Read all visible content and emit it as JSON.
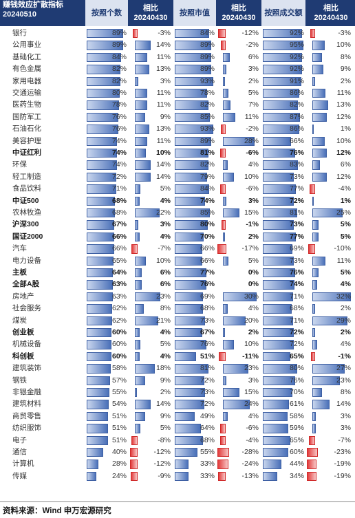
{
  "header": {
    "name_title": "赚钱效应扩散指标",
    "name_date": "20240510",
    "c1": "按照个数",
    "c2_title": "相比",
    "c2_date": "20240430",
    "c3": "按照市值",
    "c4_title": "相比",
    "c4_date": "20240430",
    "c5": "按照成交额",
    "c6_title": "相比",
    "c6_date": "20240430"
  },
  "chart_data": {
    "type": "table",
    "columns": [
      "按照个数",
      "相比20240430",
      "按照市值",
      "相比20240430",
      "按照成交额",
      "相比20240430"
    ],
    "rows": [
      {
        "name": "银行",
        "bold": false,
        "v": [
          89,
          -3,
          84,
          -12,
          92,
          -3
        ]
      },
      {
        "name": "公用事业",
        "bold": false,
        "v": [
          89,
          14,
          89,
          -2,
          95,
          10
        ]
      },
      {
        "name": "基础化工",
        "bold": false,
        "v": [
          84,
          11,
          89,
          6,
          92,
          8
        ]
      },
      {
        "name": "有色金属",
        "bold": false,
        "v": [
          82,
          13,
          89,
          3,
          92,
          9
        ]
      },
      {
        "name": "家用电器",
        "bold": false,
        "v": [
          82,
          3,
          93,
          2,
          91,
          2
        ]
      },
      {
        "name": "交通运输",
        "bold": false,
        "v": [
          80,
          11,
          78,
          5,
          86,
          11
        ]
      },
      {
        "name": "医药生物",
        "bold": false,
        "v": [
          78,
          11,
          82,
          7,
          82,
          13
        ]
      },
      {
        "name": "国防军工",
        "bold": false,
        "v": [
          76,
          9,
          85,
          11,
          87,
          12
        ]
      },
      {
        "name": "石油石化",
        "bold": false,
        "v": [
          76,
          13,
          93,
          -2,
          86,
          1
        ]
      },
      {
        "name": "美容护理",
        "bold": false,
        "v": [
          74,
          11,
          89,
          28,
          66,
          10
        ]
      },
      {
        "name": "中证红利",
        "bold": true,
        "v": [
          74,
          10,
          81,
          -6,
          76,
          12
        ]
      },
      {
        "name": "环保",
        "bold": false,
        "v": [
          74,
          14,
          82,
          4,
          83,
          6
        ]
      },
      {
        "name": "轻工制造",
        "bold": false,
        "v": [
          72,
          14,
          79,
          10,
          73,
          12
        ]
      },
      {
        "name": "食品饮料",
        "bold": false,
        "v": [
          71,
          5,
          84,
          -6,
          77,
          -4
        ]
      },
      {
        "name": "中证500",
        "bold": true,
        "v": [
          68,
          4,
          74,
          3,
          72,
          1
        ]
      },
      {
        "name": "农林牧渔",
        "bold": false,
        "v": [
          68,
          22,
          85,
          15,
          81,
          25
        ]
      },
      {
        "name": "沪深300",
        "bold": true,
        "v": [
          67,
          3,
          80,
          -1,
          73,
          5
        ]
      },
      {
        "name": "国证2000",
        "bold": true,
        "v": [
          66,
          4,
          70,
          2,
          77,
          5
        ]
      },
      {
        "name": "汽车",
        "bold": false,
        "v": [
          66,
          -7,
          66,
          -17,
          69,
          -10
        ]
      },
      {
        "name": "电力设备",
        "bold": false,
        "v": [
          65,
          10,
          66,
          5,
          73,
          11
        ]
      },
      {
        "name": "主板",
        "bold": true,
        "v": [
          64,
          6,
          77,
          0,
          76,
          5
        ]
      },
      {
        "name": "全部A股",
        "bold": true,
        "v": [
          63,
          6,
          76,
          0,
          74,
          4
        ]
      },
      {
        "name": "房地产",
        "bold": false,
        "v": [
          63,
          23,
          69,
          30,
          71,
          32
        ]
      },
      {
        "name": "社会服务",
        "bold": false,
        "v": [
          62,
          8,
          68,
          4,
          68,
          2
        ]
      },
      {
        "name": "煤炭",
        "bold": false,
        "v": [
          62,
          21,
          73,
          20,
          71,
          29
        ]
      },
      {
        "name": "创业板",
        "bold": true,
        "v": [
          60,
          4,
          67,
          2,
          72,
          2
        ]
      },
      {
        "name": "机械设备",
        "bold": false,
        "v": [
          60,
          5,
          76,
          10,
          72,
          4
        ]
      },
      {
        "name": "科创板",
        "bold": true,
        "v": [
          60,
          4,
          51,
          -11,
          65,
          -1
        ]
      },
      {
        "name": "建筑装饰",
        "bold": false,
        "v": [
          58,
          18,
          81,
          23,
          80,
          27
        ]
      },
      {
        "name": "钢铁",
        "bold": false,
        "v": [
          57,
          9,
          72,
          3,
          76,
          23
        ]
      },
      {
        "name": "非银金融",
        "bold": false,
        "v": [
          55,
          2,
          73,
          15,
          70,
          8
        ]
      },
      {
        "name": "建筑材料",
        "bold": false,
        "v": [
          54,
          14,
          72,
          24,
          61,
          14
        ]
      },
      {
        "name": "商贸零售",
        "bold": false,
        "v": [
          51,
          9,
          49,
          4,
          58,
          3
        ]
      },
      {
        "name": "纺织服饰",
        "bold": false,
        "v": [
          51,
          5,
          64,
          -6,
          59,
          3
        ]
      },
      {
        "name": "电子",
        "bold": false,
        "v": [
          51,
          -8,
          68,
          -4,
          65,
          -7
        ]
      },
      {
        "name": "通信",
        "bold": false,
        "v": [
          40,
          -12,
          55,
          -28,
          60,
          -23
        ]
      },
      {
        "name": "计算机",
        "bold": false,
        "v": [
          28,
          -12,
          33,
          -24,
          44,
          -19
        ]
      },
      {
        "name": "传媒",
        "bold": false,
        "v": [
          24,
          -9,
          33,
          -13,
          34,
          -19
        ]
      }
    ]
  },
  "colors": {
    "header_bg": "#1f3b73",
    "positive_bar": "#4a70b8",
    "negative_bar": "#e23b3b"
  },
  "footer": {
    "source": "资料来源：Wind 申万宏源研究"
  }
}
